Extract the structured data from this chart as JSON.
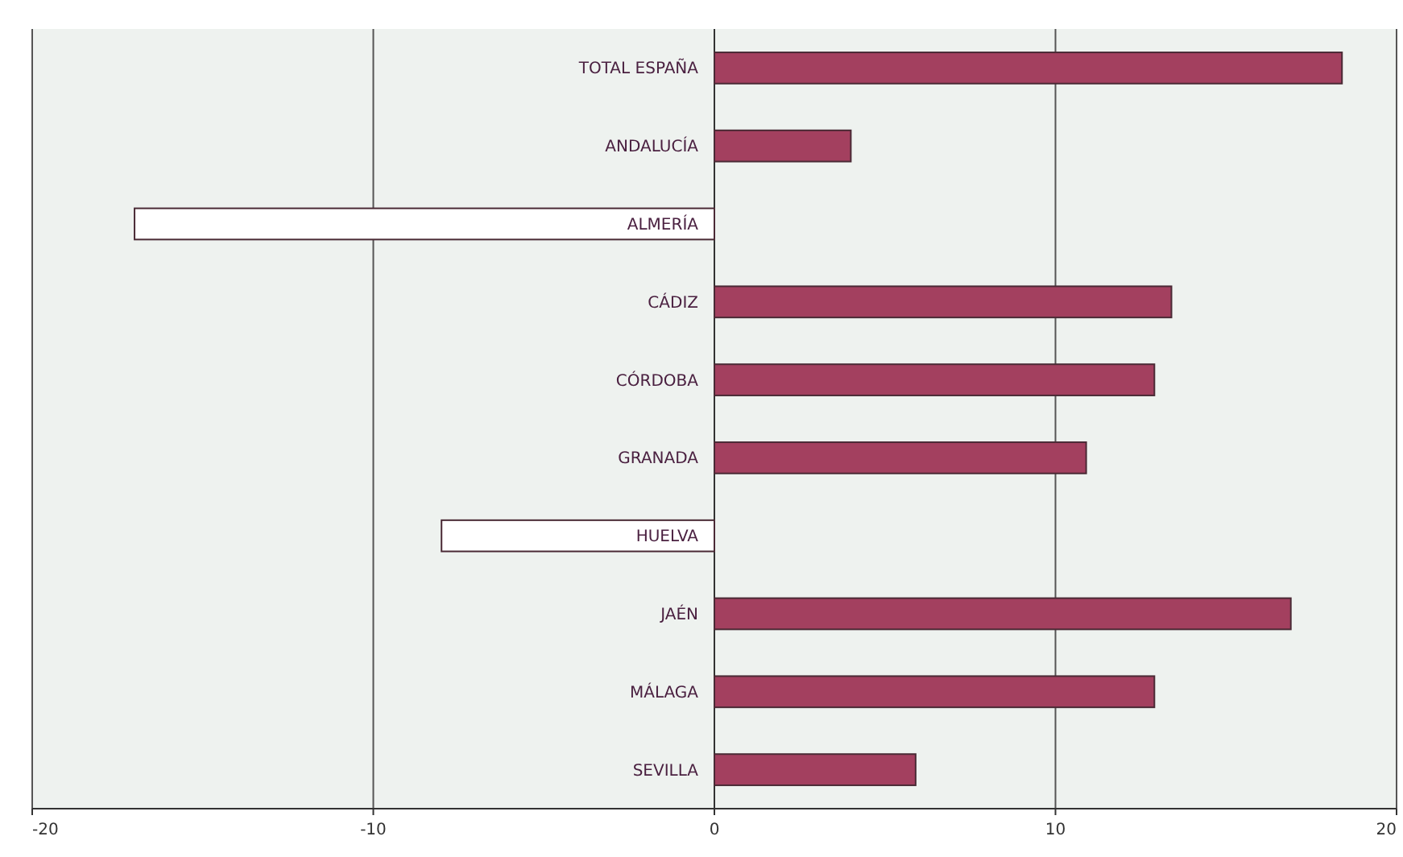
{
  "chart_data": {
    "type": "bar",
    "orientation": "horizontal",
    "categories": [
      "TOTAL ESPAÑA",
      "ANDALUCÍA",
      "ALMERÍA",
      "CÁDIZ",
      "CÓRDOBA",
      "GRANADA",
      "HUELVA",
      "JAÉN",
      "MÁLAGA",
      "SEVILLA"
    ],
    "values": [
      18.4,
      4.0,
      -17.0,
      13.4,
      12.9,
      10.9,
      -8.0,
      16.9,
      12.9,
      5.9
    ],
    "colors": [
      "#a3405f",
      "#a3405f",
      "#ffffff",
      "#a3405f",
      "#a3405f",
      "#a3405f",
      "#ffffff",
      "#a3405f",
      "#a3405f",
      "#a3405f"
    ],
    "xlim": [
      -20,
      20
    ],
    "xticks": [
      -20,
      -10,
      0,
      10,
      20
    ],
    "grid": "x"
  }
}
